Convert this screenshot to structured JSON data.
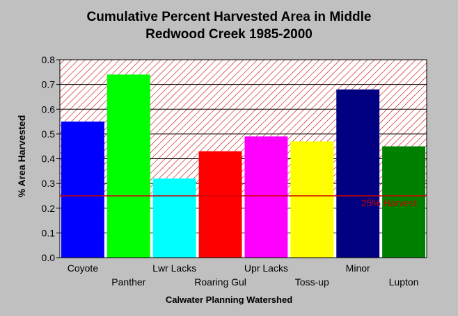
{
  "chart_data": {
    "type": "bar",
    "title": "Cumulative Percent Harvested Area in Middle Redwood Creek 1985-2000",
    "title_lines": [
      "Cumulative Percent Harvested Area in Middle",
      "Redwood Creek 1985-2000"
    ],
    "xlabel": "Calwater Planning Watershed",
    "ylabel": "% Area Harvested",
    "ylim": [
      0,
      0.8
    ],
    "yticks": [
      "0.0",
      "0.1",
      "0.2",
      "0.3",
      "0.4",
      "0.5",
      "0.6",
      "0.7",
      "0.8"
    ],
    "grid": true,
    "categories": [
      "Coyote",
      "Panther",
      "Lwr Lacks",
      "Roaring Gul",
      "Upr Lacks",
      "Toss-up",
      "Minor",
      "Lupton"
    ],
    "values": [
      0.55,
      0.74,
      0.32,
      0.43,
      0.49,
      0.47,
      0.68,
      0.45
    ],
    "colors": [
      "#0000ff",
      "#00ff00",
      "#00ffff",
      "#ff0000",
      "#ff00ff",
      "#ffff00",
      "#000080",
      "#008000"
    ],
    "threshold": {
      "value": 0.25,
      "label": "25% Harvest",
      "color": "#cc0000"
    },
    "hatch_from": 0.25,
    "hatch_color": "#cc0000"
  }
}
